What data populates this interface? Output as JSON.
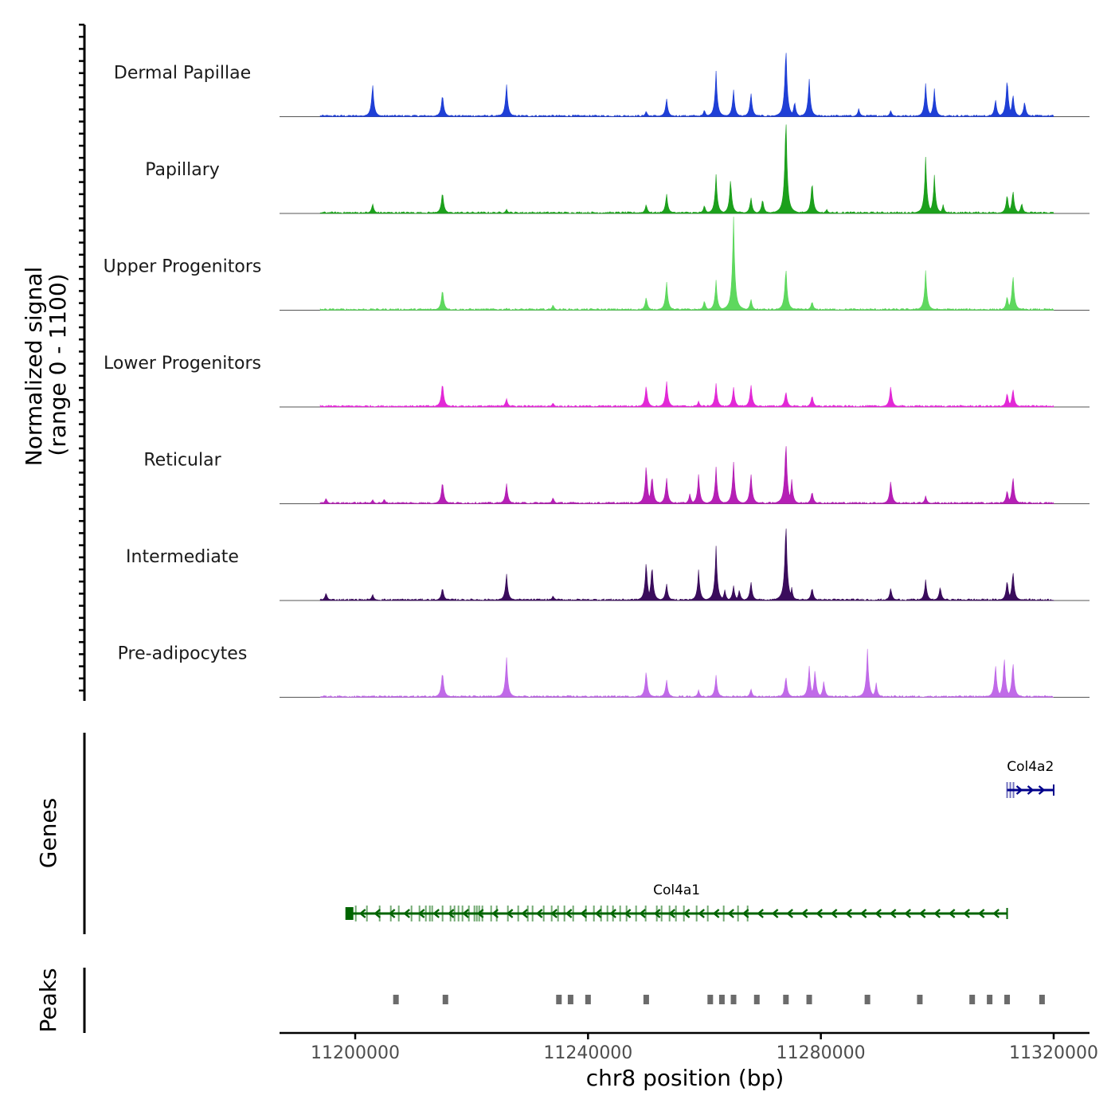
{
  "chart_data": {
    "type": "area",
    "chromosome": "chr8",
    "xlabel": "chr8 position (bp)",
    "xlim": [
      11188000,
      11327000
    ],
    "x_ticks": [
      11200000,
      11240000,
      11280000,
      11320000
    ],
    "x_tick_labels": [
      "11200000",
      "11240000",
      "11280000",
      "11320000"
    ],
    "signal_axis": {
      "title_line1": "Normalized signal",
      "title_line2": "(range 0 - 1100)",
      "ylim": [
        0,
        1100
      ]
    },
    "peak_positions": [
      11207000,
      11215500,
      11235000,
      11237000,
      11240000,
      11250000,
      11261000,
      11263000,
      11265000,
      11269000,
      11274000,
      11278000,
      11288000,
      11297000,
      11306000,
      11309000,
      11312000,
      11318000
    ],
    "series": [
      {
        "name": "Dermal Papillae",
        "color": "#1f3fd6",
        "peaks": [
          [
            11203000,
            470
          ],
          [
            11215000,
            330
          ],
          [
            11226000,
            460
          ],
          [
            11250000,
            80
          ],
          [
            11253500,
            260
          ],
          [
            11260000,
            100
          ],
          [
            11262000,
            620
          ],
          [
            11265000,
            380
          ],
          [
            11268000,
            340
          ],
          [
            11274000,
            1020
          ],
          [
            11275500,
            220
          ],
          [
            11278000,
            530
          ],
          [
            11286500,
            110
          ],
          [
            11292000,
            90
          ],
          [
            11298000,
            460
          ],
          [
            11299500,
            380
          ],
          [
            11310000,
            250
          ],
          [
            11312000,
            560
          ],
          [
            11313000,
            330
          ],
          [
            11315000,
            220
          ]
        ]
      },
      {
        "name": "Papillary",
        "color": "#1ca01c",
        "peaks": [
          [
            11203000,
            140
          ],
          [
            11215000,
            320
          ],
          [
            11226000,
            60
          ],
          [
            11250000,
            130
          ],
          [
            11253500,
            280
          ],
          [
            11260000,
            120
          ],
          [
            11262000,
            530
          ],
          [
            11264500,
            490
          ],
          [
            11268000,
            230
          ],
          [
            11270000,
            210
          ],
          [
            11274000,
            1420
          ],
          [
            11278500,
            470
          ],
          [
            11281000,
            60
          ],
          [
            11298000,
            780
          ],
          [
            11299500,
            520
          ],
          [
            11301000,
            120
          ],
          [
            11312000,
            280
          ],
          [
            11313000,
            340
          ],
          [
            11314500,
            150
          ]
        ]
      },
      {
        "name": "Upper Progenitors",
        "color": "#5ed85e",
        "peaks": [
          [
            11215000,
            310
          ],
          [
            11226000,
            30
          ],
          [
            11234000,
            80
          ],
          [
            11250000,
            190
          ],
          [
            11253500,
            410
          ],
          [
            11260000,
            140
          ],
          [
            11262000,
            410
          ],
          [
            11265000,
            1320
          ],
          [
            11268000,
            160
          ],
          [
            11274000,
            630
          ],
          [
            11278500,
            130
          ],
          [
            11298000,
            550
          ],
          [
            11312000,
            210
          ],
          [
            11313000,
            520
          ]
        ]
      },
      {
        "name": "Lower Progenitors",
        "color": "#e228d6",
        "peaks": [
          [
            11215000,
            360
          ],
          [
            11226000,
            120
          ],
          [
            11234000,
            60
          ],
          [
            11250000,
            310
          ],
          [
            11253500,
            370
          ],
          [
            11259000,
            80
          ],
          [
            11262000,
            320
          ],
          [
            11265000,
            280
          ],
          [
            11268000,
            320
          ],
          [
            11274000,
            230
          ],
          [
            11278500,
            170
          ],
          [
            11292000,
            300
          ],
          [
            11312000,
            210
          ],
          [
            11313000,
            270
          ]
        ]
      },
      {
        "name": "Reticular",
        "color": "#b51fb5",
        "peaks": [
          [
            11195000,
            80
          ],
          [
            11203000,
            60
          ],
          [
            11205000,
            70
          ],
          [
            11215000,
            330
          ],
          [
            11226000,
            290
          ],
          [
            11234000,
            90
          ],
          [
            11250000,
            560
          ],
          [
            11251000,
            420
          ],
          [
            11253500,
            370
          ],
          [
            11257500,
            140
          ],
          [
            11259000,
            400
          ],
          [
            11262000,
            500
          ],
          [
            11265000,
            590
          ],
          [
            11268000,
            430
          ],
          [
            11274000,
            920
          ],
          [
            11275000,
            330
          ],
          [
            11278500,
            180
          ],
          [
            11292000,
            330
          ],
          [
            11298000,
            110
          ],
          [
            11312000,
            200
          ],
          [
            11313000,
            400
          ]
        ]
      },
      {
        "name": "Intermediate",
        "color": "#3a0c5c",
        "peaks": [
          [
            11195000,
            110
          ],
          [
            11203000,
            90
          ],
          [
            11215000,
            190
          ],
          [
            11226000,
            380
          ],
          [
            11234000,
            70
          ],
          [
            11250000,
            560
          ],
          [
            11251000,
            520
          ],
          [
            11253500,
            240
          ],
          [
            11259000,
            420
          ],
          [
            11262000,
            740
          ],
          [
            11263500,
            150
          ],
          [
            11265000,
            210
          ],
          [
            11266000,
            150
          ],
          [
            11268000,
            270
          ],
          [
            11274000,
            1150
          ],
          [
            11275000,
            180
          ],
          [
            11278500,
            190
          ],
          [
            11292000,
            180
          ],
          [
            11298000,
            290
          ],
          [
            11300500,
            200
          ],
          [
            11312000,
            300
          ],
          [
            11313000,
            430
          ]
        ]
      },
      {
        "name": "Pre-adipocytes",
        "color": "#c06ae8",
        "peaks": [
          [
            11215000,
            380
          ],
          [
            11226000,
            570
          ],
          [
            11250000,
            380
          ],
          [
            11253500,
            250
          ],
          [
            11259000,
            100
          ],
          [
            11262000,
            300
          ],
          [
            11268000,
            120
          ],
          [
            11274000,
            310
          ],
          [
            11278000,
            440
          ],
          [
            11279000,
            390
          ],
          [
            11280500,
            230
          ],
          [
            11288000,
            650
          ],
          [
            11289500,
            200
          ],
          [
            11310000,
            470
          ],
          [
            11311500,
            580
          ],
          [
            11313000,
            520
          ]
        ]
      }
    ],
    "tracks": {
      "genes_title": "Genes",
      "peaks_title": "Peaks"
    },
    "genes": [
      {
        "name": "Col4a1",
        "start": 11199000,
        "end": 11312000,
        "strand": "-",
        "color": "#006400"
      },
      {
        "name": "Col4a2",
        "start": 11312000,
        "end": 11320000,
        "strand": "+",
        "color": "#00008b"
      }
    ]
  }
}
